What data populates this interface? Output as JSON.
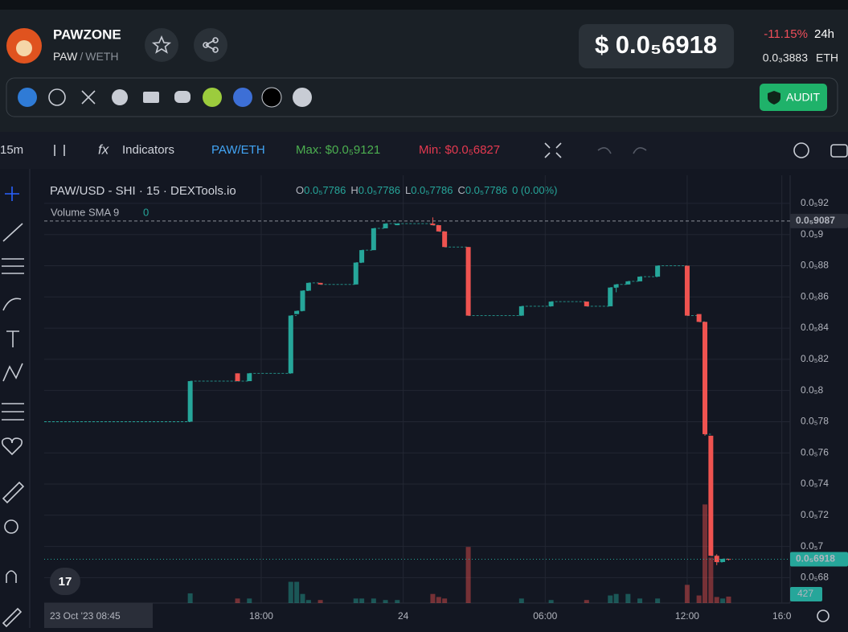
{
  "header": {
    "name": "PAWZONE",
    "pair_base": "PAW",
    "pair_sep": "/",
    "pair_quote": "WETH",
    "price": "$ 0.0₅6918",
    "change": "-11.15%",
    "period": "24h",
    "eth_price": "0.0₃3883",
    "eth_unit": "ETH",
    "audit": "AUDIT"
  },
  "toolbar": {
    "interval": "15m",
    "indicators": "Indicators",
    "pair": "PAW/ETH",
    "max": "Max: $0.0₅9121",
    "min": "Min: $0.0₅6827"
  },
  "legend": {
    "symbol": "PAW/USD - SHI · 15 · DEXTools.io",
    "ohlc": [
      {
        "key": "O",
        "value": "0.0₅7786"
      },
      {
        "key": "H",
        "value": "0.0₅7786"
      },
      {
        "key": "L",
        "value": "0.0₅7786"
      },
      {
        "key": "C",
        "value": "0.0₅7786"
      }
    ],
    "change": "0 (0.00%)",
    "volume_name": "Volume SMA 9",
    "volume_value": "0"
  },
  "chart_data": {
    "type": "candlestick",
    "date_label": "23 Oct '23  08:45",
    "xlim": [
      8.83,
      40.35
    ],
    "xticks": [
      {
        "value": 18,
        "label": "18:00"
      },
      {
        "value": 24,
        "label": "24"
      },
      {
        "value": 30,
        "label": "06:00"
      },
      {
        "value": 36,
        "label": "12:00"
      },
      {
        "value": 40,
        "label": "16:0"
      }
    ],
    "ylim": [
      6.637e-06,
      9.38e-06
    ],
    "yticks": [
      {
        "value": 9.2e-06,
        "label": "0.0₅92"
      },
      {
        "value": 9e-06,
        "label": "0.0₅9"
      },
      {
        "value": 8.8e-06,
        "label": "0.0₅88"
      },
      {
        "value": 8.6e-06,
        "label": "0.0₅86"
      },
      {
        "value": 8.4e-06,
        "label": "0.0₅84"
      },
      {
        "value": 8.2e-06,
        "label": "0.0₅82"
      },
      {
        "value": 8e-06,
        "label": "0.0₅8"
      },
      {
        "value": 7.8e-06,
        "label": "0.0₅78"
      },
      {
        "value": 7.6e-06,
        "label": "0.0₅76"
      },
      {
        "value": 7.4e-06,
        "label": "0.0₅74"
      },
      {
        "value": 7.2e-06,
        "label": "0.0₅72"
      },
      {
        "value": 7e-06,
        "label": "0.0₅7"
      },
      {
        "value": 6.8e-06,
        "label": "0.0₅68"
      }
    ],
    "price_labels": [
      {
        "value": 9.087e-06,
        "label": "0.0₅9087"
      },
      {
        "value": 6.918e-06,
        "label": "0.0₅6918"
      }
    ],
    "up_color": "#26a69a",
    "down_color": "#ef5350",
    "volume_max": 15000,
    "x": [
      15,
      17,
      17.5,
      19.25,
      19.5,
      19.75,
      20,
      20.5,
      22,
      22.25,
      22.75,
      23.25,
      23.75,
      25.25,
      25.5,
      25.75,
      26.75,
      29,
      30.25,
      31.75,
      32.75,
      33,
      33.5,
      34,
      34.75,
      36,
      36.5,
      36.75,
      37,
      37.25,
      37.5,
      37.75
    ],
    "open": [
      7.8e-06,
      8.11e-06,
      8.06e-06,
      8.11e-06,
      8.49e-06,
      8.51e-06,
      8.64e-06,
      8.69e-06,
      8.68e-06,
      8.82e-06,
      8.9e-06,
      9.04e-06,
      9.06e-06,
      9.07e-06,
      9.06e-06,
      9.02e-06,
      8.92e-06,
      8.48e-06,
      8.54e-06,
      8.57e-06,
      8.54e-06,
      8.66e-06,
      8.68e-06,
      8.7e-06,
      8.73e-06,
      8.8e-06,
      8.49e-06,
      8.44e-06,
      7.71e-06,
      6.94e-06,
      6.9e-06,
      6.92e-06
    ],
    "high": [
      8.06e-06,
      8.11e-06,
      8.11e-06,
      8.48e-06,
      8.51e-06,
      8.64e-06,
      8.69e-06,
      8.69e-06,
      8.82e-06,
      8.9e-06,
      9.04e-06,
      9.07e-06,
      9.07e-06,
      9.11e-06,
      9.06e-06,
      9.02e-06,
      8.92e-06,
      8.54e-06,
      8.57e-06,
      8.57e-06,
      8.66e-06,
      8.68e-06,
      8.7e-06,
      8.73e-06,
      8.8e-06,
      8.8e-06,
      8.49e-06,
      8.44e-06,
      7.71e-06,
      6.95e-06,
      6.92e-06,
      6.92e-06
    ],
    "low": [
      7.8e-06,
      8.06e-06,
      8.06e-06,
      8.11e-06,
      8.49e-06,
      8.51e-06,
      8.64e-06,
      8.68e-06,
      8.68e-06,
      8.82e-06,
      8.9e-06,
      9.04e-06,
      9.06e-06,
      9.06e-06,
      9.02e-06,
      8.92e-06,
      8.48e-06,
      8.48e-06,
      8.54e-06,
      8.54e-06,
      8.54e-06,
      8.63e-06,
      8.68e-06,
      8.7e-06,
      8.73e-06,
      8.48e-06,
      8.44e-06,
      7.71e-06,
      6.94e-06,
      6.88e-06,
      6.9e-06,
      6.91e-06
    ],
    "close": [
      8.06e-06,
      8.06e-06,
      8.11e-06,
      8.48e-06,
      8.51e-06,
      8.64e-06,
      8.69e-06,
      8.68e-06,
      8.82e-06,
      8.9e-06,
      9.04e-06,
      9.07e-06,
      9.07e-06,
      9.06e-06,
      9.02e-06,
      8.92e-06,
      8.48e-06,
      8.54e-06,
      8.57e-06,
      8.54e-06,
      8.66e-06,
      8.68e-06,
      8.7e-06,
      8.73e-06,
      8.8e-06,
      8.48e-06,
      8.44e-06,
      7.72e-06,
      6.94e-06,
      6.9e-06,
      6.92e-06,
      6.918e-06
    ],
    "volume": [
      640,
      300,
      300,
      1400,
      1400,
      600,
      200,
      200,
      300,
      300,
      300,
      200,
      200,
      600,
      400,
      300,
      3700,
      300,
      200,
      200,
      500,
      600,
      600,
      300,
      300,
      1200,
      500,
      6500,
      3000,
      400,
      300,
      427
    ]
  }
}
